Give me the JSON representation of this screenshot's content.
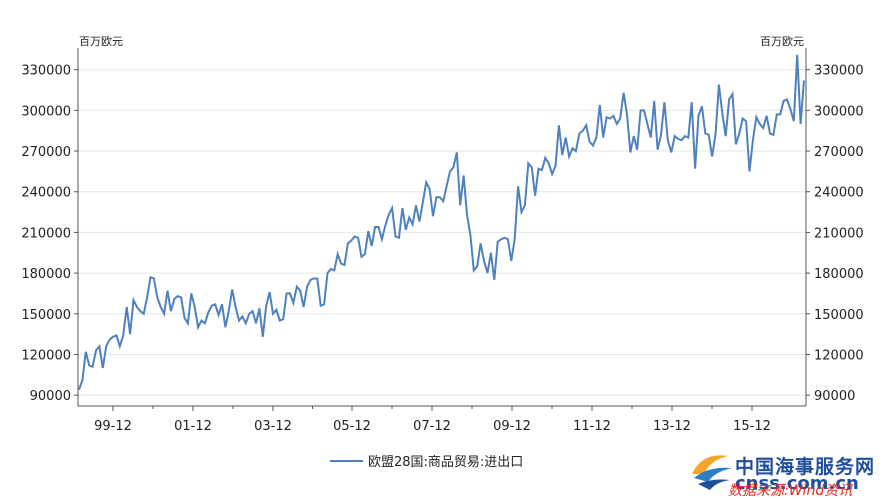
{
  "chart_data": {
    "type": "line",
    "title": "",
    "y_unit_left": "百万欧元",
    "y_unit_right": "百万欧元",
    "ylim": [
      82000,
      346000
    ],
    "y_ticks": [
      90000,
      120000,
      150000,
      180000,
      210000,
      240000,
      270000,
      300000,
      330000
    ],
    "x_tick_labels": [
      "99-12",
      "01-12",
      "03-12",
      "05-12",
      "07-12",
      "09-12",
      "11-12",
      "13-12",
      "15-12"
    ],
    "grid": true,
    "legend_position": "bottom-center",
    "line_color": "#4f81bd",
    "series": [
      {
        "name": "欧盟28国:商品贸易:进出口",
        "values": [
          94000,
          101000,
          122000,
          112000,
          111000,
          123000,
          126000,
          110000,
          126000,
          131000,
          133000,
          134000,
          126000,
          134000,
          155000,
          135000,
          160000,
          155000,
          152000,
          150000,
          162000,
          177000,
          176000,
          162000,
          155000,
          150000,
          167000,
          152000,
          161000,
          163000,
          162000,
          147000,
          143000,
          165000,
          155000,
          140000,
          145000,
          143000,
          151000,
          156000,
          157000,
          149000,
          157000,
          140000,
          152000,
          168000,
          155000,
          145000,
          148000,
          143000,
          150000,
          152000,
          143000,
          154000,
          133000,
          156000,
          166000,
          150000,
          153000,
          145000,
          146000,
          165000,
          165000,
          158000,
          170000,
          167000,
          155000,
          170000,
          175000,
          176000,
          176000,
          156000,
          157000,
          180000,
          183000,
          182000,
          194000,
          187000,
          186000,
          202000,
          204000,
          207000,
          206000,
          192000,
          194000,
          211000,
          200000,
          214000,
          214000,
          205000,
          215000,
          223000,
          228000,
          207000,
          206000,
          228000,
          212000,
          221000,
          216000,
          230000,
          218000,
          232000,
          247000,
          242000,
          222000,
          236000,
          236000,
          233000,
          244000,
          255000,
          258000,
          269000,
          230000,
          252000,
          223000,
          208000,
          182000,
          185000,
          202000,
          189000,
          180000,
          195000,
          175000,
          203000,
          205000,
          206000,
          205000,
          189000,
          205000,
          244000,
          225000,
          230000,
          261000,
          258000,
          237000,
          257000,
          256000,
          265000,
          261000,
          253000,
          259000,
          289000,
          267000,
          280000,
          266000,
          272000,
          270000,
          283000,
          285000,
          289000,
          277000,
          274000,
          280000,
          304000,
          280000,
          295000,
          294000,
          296000,
          290000,
          294000,
          313000,
          297000,
          269000,
          281000,
          271000,
          300000,
          300000,
          290000,
          280000,
          307000,
          271000,
          282000,
          306000,
          278000,
          269000,
          281000,
          279000,
          278000,
          281000,
          280000,
          306000,
          257000,
          296000,
          303000,
          283000,
          282000,
          266000,
          282000,
          319000,
          298000,
          281000,
          308000,
          312000,
          275000,
          283000,
          294000,
          292000,
          255000,
          278000,
          295000,
          290000,
          287000,
          296000,
          283000,
          282000,
          297000,
          297000,
          307000,
          308000,
          301000,
          292000,
          341000,
          290000,
          322000
        ]
      }
    ]
  },
  "watermark": {
    "site_name": "中国海事服务网",
    "site_url": "cnss.com.cn",
    "source_text": "数据来源:Wind资讯"
  }
}
